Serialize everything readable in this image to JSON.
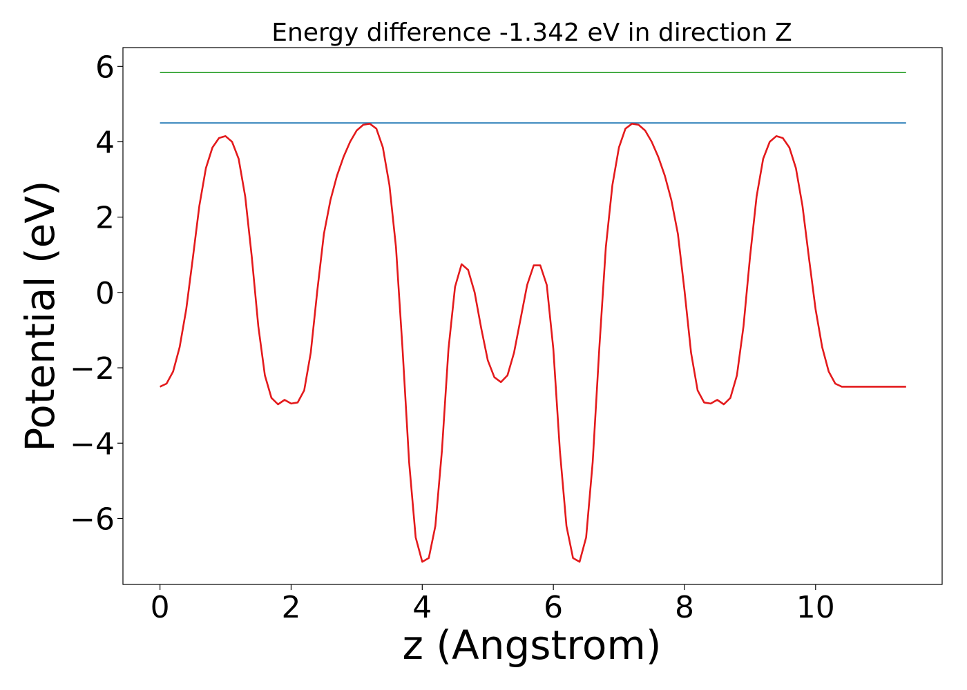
{
  "chart_data": {
    "type": "line",
    "title": "Energy difference -1.342 eV in direction Z",
    "xlabel": "z (Angstrom)",
    "ylabel": "Potential (eV)",
    "xlim": [
      -0.565,
      11.93
    ],
    "ylim": [
      -7.75,
      6.5
    ],
    "xticks": [
      {
        "value": 0,
        "label": "0"
      },
      {
        "value": 2,
        "label": "2"
      },
      {
        "value": 4,
        "label": "4"
      },
      {
        "value": 6,
        "label": "6"
      },
      {
        "value": 8,
        "label": "8"
      },
      {
        "value": 10,
        "label": "10"
      }
    ],
    "yticks": [
      {
        "value": 6,
        "label": "6"
      },
      {
        "value": 4,
        "label": "4"
      },
      {
        "value": 2,
        "label": "2"
      },
      {
        "value": 0,
        "label": "0"
      },
      {
        "value": -2,
        "label": "−2"
      },
      {
        "value": -4,
        "label": "−4"
      },
      {
        "value": -6,
        "label": "−6"
      }
    ],
    "grid": false,
    "series": [
      {
        "color": "#2ca02c",
        "x": [
          0,
          11.38
        ],
        "y": [
          5.84,
          5.84
        ]
      },
      {
        "color": "#1f77b4",
        "x": [
          0,
          11.38
        ],
        "y": [
          4.5,
          4.5
        ]
      },
      {
        "color": "#e31a1c",
        "x": [
          0,
          0.1,
          0.2,
          0.3,
          0.4,
          0.5,
          0.6,
          0.7,
          0.8,
          0.9,
          1.0,
          1.1,
          1.2,
          1.3,
          1.4,
          1.5,
          1.6,
          1.7,
          1.8,
          1.9,
          2.0,
          2.1,
          2.2,
          2.3,
          2.4,
          2.5,
          2.6,
          2.7,
          2.8,
          2.9,
          3.0,
          3.1,
          3.2,
          3.3,
          3.4,
          3.5,
          3.6,
          3.7,
          3.8,
          3.9,
          4.0,
          4.1,
          4.2,
          4.3,
          4.4,
          4.5,
          4.6,
          4.7,
          4.8,
          4.9,
          5.0,
          5.1,
          5.2,
          5.3,
          5.4,
          5.5,
          5.6,
          5.7,
          5.8,
          5.9,
          6.0,
          6.1,
          6.2,
          6.3,
          6.4,
          6.5,
          6.6,
          6.7,
          6.8,
          6.9,
          7.0,
          7.1,
          7.2,
          7.3,
          7.4,
          7.5,
          7.6,
          7.7,
          7.8,
          7.9,
          8.0,
          8.1,
          8.2,
          8.3,
          8.4,
          8.5,
          8.6,
          8.7,
          8.8,
          8.9,
          9.0,
          9.1,
          9.2,
          9.3,
          9.4,
          9.5,
          9.6,
          9.7,
          9.8,
          9.9,
          10.0,
          10.1,
          10.2,
          10.3,
          10.4,
          10.5,
          10.6,
          10.7,
          10.8,
          10.9,
          11.0,
          11.1,
          11.2,
          11.3,
          11.38
        ],
        "y": [
          -2.5,
          -2.42,
          -2.1,
          -1.45,
          -0.45,
          0.9,
          2.3,
          3.3,
          3.85,
          4.1,
          4.15,
          4.0,
          3.55,
          2.55,
          0.95,
          -0.9,
          -2.2,
          -2.8,
          -2.97,
          -2.85,
          -2.95,
          -2.92,
          -2.6,
          -1.6,
          0.05,
          1.55,
          2.45,
          3.1,
          3.6,
          4.0,
          4.3,
          4.45,
          4.48,
          4.35,
          3.85,
          2.85,
          1.2,
          -1.5,
          -4.5,
          -6.5,
          -7.15,
          -7.05,
          -6.2,
          -4.2,
          -1.5,
          0.15,
          0.75,
          0.6,
          0.0,
          -0.95,
          -1.8,
          -2.25,
          -2.38,
          -2.2,
          -1.6,
          -0.7,
          0.2,
          0.72,
          0.72,
          0.2,
          -1.5,
          -4.2,
          -6.2,
          -7.05,
          -7.15,
          -6.5,
          -4.5,
          -1.5,
          1.2,
          2.85,
          3.85,
          4.35,
          4.48,
          4.45,
          4.3,
          4.0,
          3.6,
          3.1,
          2.45,
          1.55,
          0.05,
          -1.6,
          -2.6,
          -2.92,
          -2.95,
          -2.85,
          -2.97,
          -2.8,
          -2.2,
          -0.9,
          0.95,
          2.55,
          3.55,
          4.0,
          4.15,
          4.1,
          3.85,
          3.3,
          2.3,
          0.9,
          -0.45,
          -1.45,
          -2.1,
          -2.42,
          -2.5,
          -2.5,
          -2.5,
          -2.5,
          -2.5,
          -2.5,
          -2.5,
          -2.5,
          -2.5,
          -2.5,
          -2.5
        ]
      }
    ]
  }
}
